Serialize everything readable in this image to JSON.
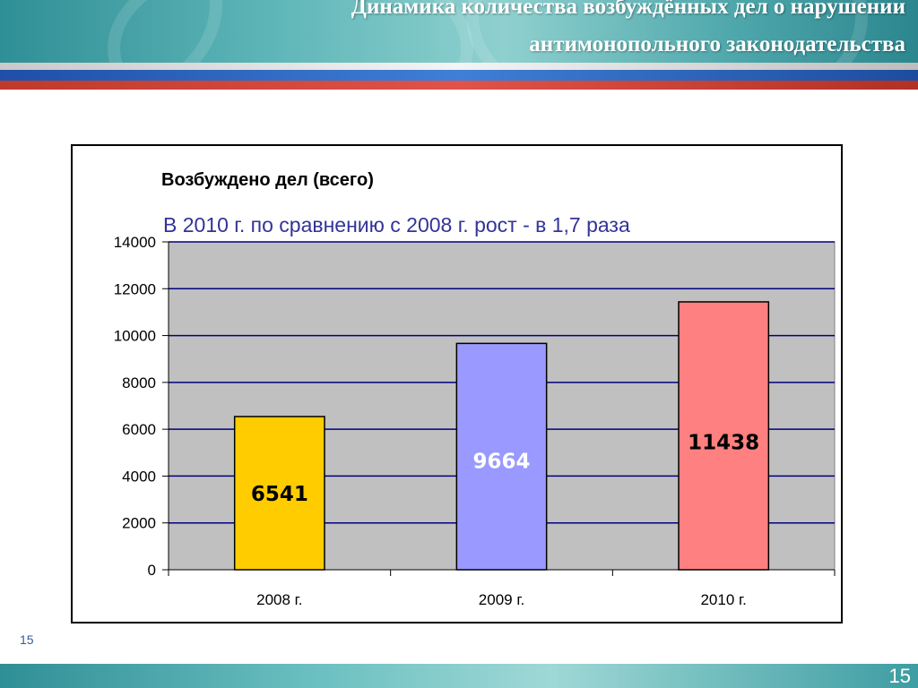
{
  "slide": {
    "title_line1": "Динамика количества возбуждённых дел о нарушении",
    "title_line2": "антимонопольного законодательства",
    "page_number_small": "15",
    "page_number_footer": "15"
  },
  "chart_data": {
    "type": "bar",
    "title": "Возбуждено дел (всего)",
    "subtitle": "В 2010 г. по сравнению с 2008 г. рост - в 1,7 раза",
    "categories": [
      "2008 г.",
      "2009 г.",
      "2010 г."
    ],
    "values": [
      6541,
      9664,
      11438
    ],
    "data_labels": [
      "6541",
      "9664",
      "11438"
    ],
    "ylim": [
      0,
      14000
    ],
    "yticks": [
      0,
      2000,
      4000,
      6000,
      8000,
      10000,
      12000,
      14000
    ],
    "ytick_labels": [
      "0",
      "2000",
      "4000",
      "6000",
      "8000",
      "10000",
      "12000",
      "14000"
    ],
    "bar_colors": [
      "#ffcc00",
      "#9999ff",
      "#ff8080"
    ],
    "label_colors": [
      "#000000",
      "#ffffff",
      "#000000"
    ],
    "plot_background": "#c0c0c0",
    "gridline_color": "#000080",
    "subtitle_color": "#333399",
    "grid": true,
    "legend": "none"
  }
}
